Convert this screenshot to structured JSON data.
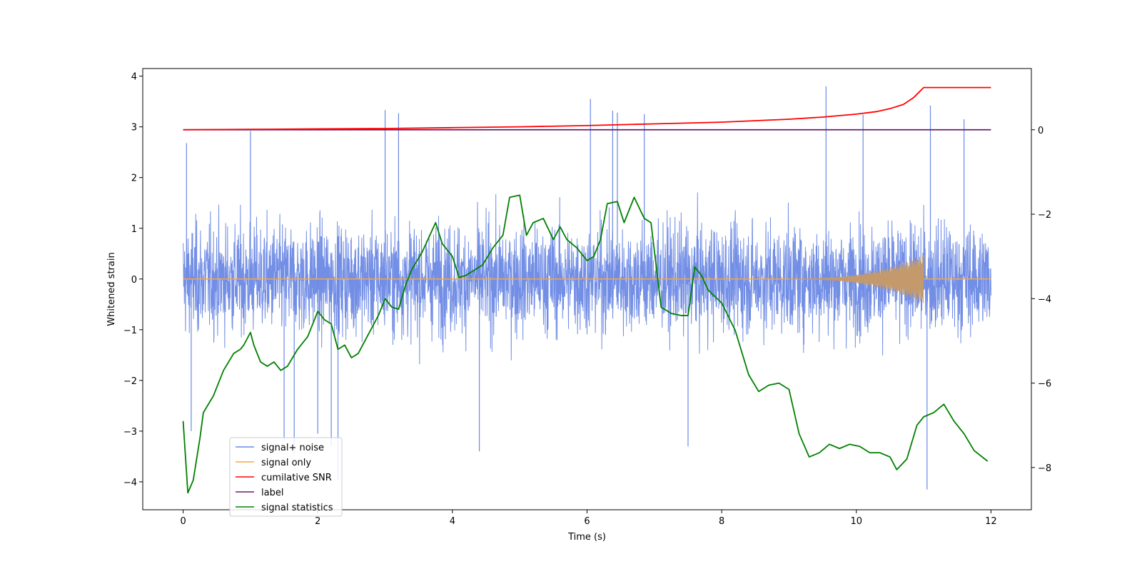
{
  "chart_data": {
    "type": "line",
    "title": "",
    "xlabel": "Time (s)",
    "ylabel": "Whitened strain",
    "xlim": [
      -0.6,
      12.6
    ],
    "ylim": [
      -4.55,
      4.15
    ],
    "y2lim": [
      -9.0,
      1.45
    ],
    "xticks": [
      0,
      2,
      4,
      6,
      8,
      10,
      12
    ],
    "yticks": [
      -4,
      -3,
      -2,
      -1,
      0,
      1,
      2,
      3,
      4
    ],
    "y2ticks": [
      -8,
      -6,
      -4,
      -2,
      0
    ],
    "legend_position": "lower-left",
    "series": [
      {
        "name": "signal+ noise",
        "axis": "left",
        "color": "#6a88e4",
        "description_stats": {
          "x_start": 0,
          "x_end": 12,
          "typical_min": -2.0,
          "typical_max": 2.0,
          "mean": 0.0
        },
        "spikes": [
          {
            "x": 0.05,
            "y": 2.68
          },
          {
            "x": 0.12,
            "y": -3.0
          },
          {
            "x": 1.0,
            "y": 2.92
          },
          {
            "x": 1.5,
            "y": -3.2
          },
          {
            "x": 1.65,
            "y": -3.45
          },
          {
            "x": 2.0,
            "y": -3.05
          },
          {
            "x": 2.2,
            "y": -3.3
          },
          {
            "x": 2.3,
            "y": -3.95
          },
          {
            "x": 3.0,
            "y": 3.33
          },
          {
            "x": 3.2,
            "y": 3.27
          },
          {
            "x": 4.4,
            "y": -3.4
          },
          {
            "x": 6.05,
            "y": 3.55
          },
          {
            "x": 6.38,
            "y": 3.32
          },
          {
            "x": 6.45,
            "y": 3.28
          },
          {
            "x": 6.85,
            "y": 3.25
          },
          {
            "x": 7.5,
            "y": -3.3
          },
          {
            "x": 9.55,
            "y": 3.8
          },
          {
            "x": 10.1,
            "y": 3.24
          },
          {
            "x": 11.05,
            "y": -4.15
          },
          {
            "x": 11.1,
            "y": 3.42
          },
          {
            "x": 11.6,
            "y": 3.15
          }
        ]
      },
      {
        "name": "signal only",
        "axis": "left",
        "color": "#f5a64a",
        "description_stats": {
          "x_start": 0,
          "x_end": 12,
          "baseline": 0.0,
          "chirp_peak_x": 11.0,
          "chirp_peak_amp": 0.48
        }
      },
      {
        "name": "cumilative SNR",
        "axis": "right",
        "color": "#ff0000",
        "x": [
          0,
          1,
          2,
          3,
          4,
          5,
          6,
          7,
          8,
          9,
          9.5,
          10,
          10.3,
          10.5,
          10.7,
          10.85,
          10.95,
          11.0,
          11.5,
          12.0
        ],
        "y": [
          0.0,
          0.01,
          0.02,
          0.03,
          0.05,
          0.07,
          0.1,
          0.14,
          0.18,
          0.25,
          0.3,
          0.37,
          0.43,
          0.5,
          0.6,
          0.76,
          0.92,
          1.0,
          1.0,
          1.0
        ]
      },
      {
        "name": "label",
        "axis": "right",
        "color": "#6a1b6a",
        "x": [
          0,
          12
        ],
        "y": [
          0.0,
          0.0
        ]
      },
      {
        "name": "signal statistics",
        "axis": "right",
        "color": "#008000",
        "x": [
          0.0,
          0.07,
          0.15,
          0.25,
          0.3,
          0.45,
          0.6,
          0.75,
          0.85,
          0.9,
          1.0,
          1.05,
          1.15,
          1.25,
          1.35,
          1.45,
          1.55,
          1.7,
          1.85,
          2.0,
          2.1,
          2.2,
          2.3,
          2.4,
          2.5,
          2.6,
          2.7,
          2.8,
          2.9,
          3.0,
          3.1,
          3.2,
          3.3,
          3.4,
          3.55,
          3.75,
          3.85,
          4.0,
          4.1,
          4.2,
          4.3,
          4.45,
          4.6,
          4.75,
          4.85,
          5.0,
          5.1,
          5.2,
          5.35,
          5.5,
          5.6,
          5.7,
          5.85,
          6.0,
          6.1,
          6.2,
          6.3,
          6.45,
          6.55,
          6.7,
          6.85,
          6.95,
          7.1,
          7.25,
          7.4,
          7.5,
          7.6,
          7.7,
          7.8,
          8.0,
          8.2,
          8.4,
          8.55,
          8.7,
          8.85,
          9.0,
          9.15,
          9.3,
          9.45,
          9.6,
          9.75,
          9.9,
          10.05,
          10.2,
          10.35,
          10.5,
          10.6,
          10.75,
          10.9,
          11.0,
          11.15,
          11.3,
          11.45,
          11.6,
          11.75,
          11.95
        ],
        "y": [
          -6.9,
          -8.6,
          -8.3,
          -7.3,
          -6.7,
          -6.3,
          -5.7,
          -5.3,
          -5.2,
          -5.1,
          -4.8,
          -5.1,
          -5.5,
          -5.6,
          -5.5,
          -5.7,
          -5.6,
          -5.2,
          -4.9,
          -4.3,
          -4.5,
          -4.6,
          -5.2,
          -5.1,
          -5.4,
          -5.3,
          -5.0,
          -4.7,
          -4.4,
          -4.0,
          -4.2,
          -4.25,
          -3.7,
          -3.3,
          -2.9,
          -2.2,
          -2.7,
          -3.0,
          -3.5,
          -3.45,
          -3.35,
          -3.2,
          -2.8,
          -2.5,
          -1.6,
          -1.55,
          -2.5,
          -2.2,
          -2.1,
          -2.6,
          -2.3,
          -2.6,
          -2.8,
          -3.1,
          -3.0,
          -2.6,
          -1.75,
          -1.7,
          -2.2,
          -1.6,
          -2.1,
          -2.2,
          -4.2,
          -4.35,
          -4.4,
          -4.4,
          -3.25,
          -3.45,
          -3.8,
          -4.1,
          -4.75,
          -5.8,
          -6.2,
          -6.05,
          -6.0,
          -6.15,
          -7.2,
          -7.75,
          -7.65,
          -7.45,
          -7.55,
          -7.45,
          -7.5,
          -7.65,
          -7.65,
          -7.75,
          -8.05,
          -7.8,
          -7.0,
          -6.8,
          -6.7,
          -6.5,
          -6.9,
          -7.2,
          -7.6,
          -7.85
        ]
      }
    ]
  }
}
